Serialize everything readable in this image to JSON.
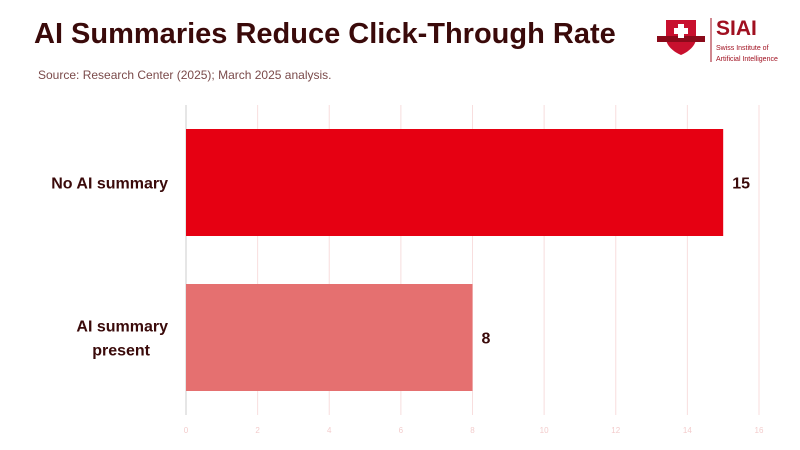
{
  "title": "AI Summaries Reduce Click-Through Rate",
  "subtitle": "Source: Research Center (2025); March 2025 analysis.",
  "logo": {
    "text": "SIAI",
    "subtext_1": "Swiss Institute of",
    "subtext_2": "Artificial Intelligence"
  },
  "chart_data": {
    "type": "bar",
    "orientation": "horizontal",
    "categories": [
      "No AI summary",
      "AI summary present"
    ],
    "values": [
      15,
      8
    ],
    "colors": [
      "#e60012",
      "#e57070"
    ],
    "xlim": [
      0,
      16
    ],
    "xticks": [
      0,
      2,
      4,
      6,
      8,
      10,
      12,
      14,
      16
    ],
    "grid": true,
    "data_labels": true
  }
}
